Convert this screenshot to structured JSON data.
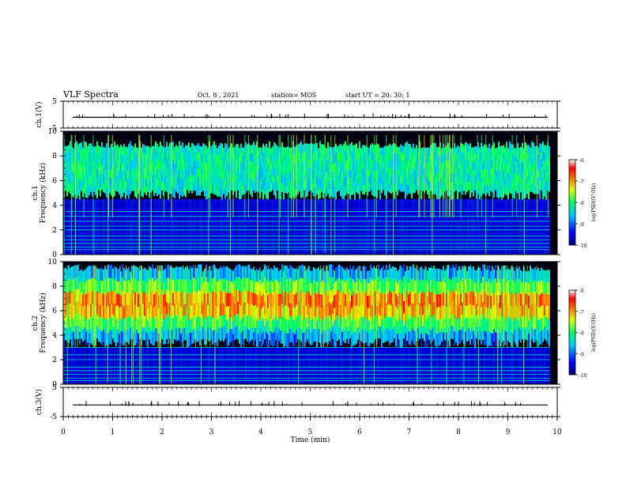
{
  "header": {
    "title": "VLF  Spectra",
    "date": "Oct. 8  , 2021",
    "station": "station= MOS",
    "start": "start  UT  =   20: 30: 1"
  },
  "chart_data": [
    {
      "type": "line",
      "name": "ch1-waveform",
      "ylabel": "ch.1(V)",
      "yticks": [
        "5",
        "-5"
      ],
      "ylim": [
        -5,
        5
      ],
      "xlim": [
        0,
        10
      ]
    },
    {
      "type": "heatmap",
      "name": "ch1-spectrogram",
      "ylabel": "ch.1\nFrequency (kHz)",
      "ylabel_lines": [
        "ch.1",
        "Frequency  (kHz)"
      ],
      "yticks": [
        "0",
        "2",
        "4",
        "6",
        "8",
        "10"
      ],
      "ylim": [
        0,
        10
      ],
      "xlim": [
        0,
        10
      ],
      "colorbar": {
        "label": "log(PSD)(V²/Hz)",
        "ticks": [
          "-6",
          "-7",
          "-8",
          "-9",
          "-10"
        ],
        "range": [
          -10,
          -6
        ]
      },
      "emission_band_khz": [
        4.5,
        9.2
      ],
      "tonal_lines_khz": [
        0.4,
        0.6,
        0.9,
        1.2,
        1.5,
        2.0,
        2.3,
        2.7,
        3.1,
        3.5
      ]
    },
    {
      "type": "heatmap",
      "name": "ch2-spectrogram",
      "ylabel": "ch.2\nFrequency (kHz)",
      "ylabel_lines": [
        "ch.2",
        "Frequency  (kHz)"
      ],
      "yticks": [
        "0",
        "2",
        "4",
        "6",
        "8",
        "10"
      ],
      "ylim": [
        0,
        10
      ],
      "xlim": [
        0,
        10
      ],
      "colorbar": {
        "label": "log(PSD)(V²/Hz)",
        "ticks": [
          "-6",
          "-7",
          "-8",
          "-9",
          "-10"
        ],
        "range": [
          -10,
          -6
        ]
      },
      "emission_band_khz": [
        3.0,
        9.8
      ],
      "peak_khz": 6.5,
      "tonal_lines_khz": [
        0.3,
        0.5,
        0.8,
        1.1,
        1.4,
        2.0,
        2.4,
        3.0
      ]
    },
    {
      "type": "line",
      "name": "ch3-waveform",
      "ylabel": "ch.3(V)",
      "yticks": [
        "5",
        "-5"
      ],
      "ylim": [
        -5,
        5
      ],
      "xlim": [
        0,
        10
      ],
      "xlabel": "Time  (min)",
      "xticks": [
        "0",
        "1",
        "2",
        "3",
        "4",
        "5",
        "6",
        "7",
        "8",
        "9",
        "10"
      ]
    }
  ]
}
